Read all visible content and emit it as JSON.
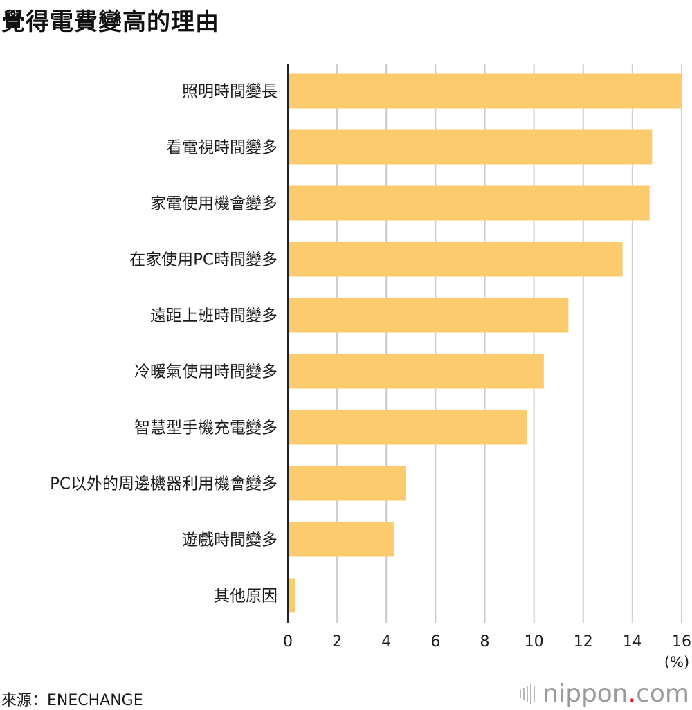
{
  "title": "覺得電費變高的理由",
  "source": "來源：ENECHANGE",
  "logo": {
    "name": "nippon",
    "dot": ".",
    "tld": "com",
    "dot_color": "#e60012"
  },
  "chart_data": {
    "type": "bar",
    "orientation": "horizontal",
    "title": "覺得電費變高的理由",
    "categories": [
      "照明時間變長",
      "看電視時間變多",
      "家電使用機會變多",
      "在家使用PC時間變多",
      "遠距上班時間變多",
      "冷暖氣使用時間變多",
      "智慧型手機充電變多",
      "PC以外的周邊機器利用機會變多",
      "遊戲時間變多",
      "其他原因"
    ],
    "values": [
      16.0,
      14.8,
      14.7,
      13.6,
      11.4,
      10.4,
      9.7,
      4.8,
      4.3,
      0.3
    ],
    "xlim": [
      0,
      16
    ],
    "xticks": [
      "0",
      "2",
      "4",
      "6",
      "8",
      "10",
      "12",
      "14",
      "16"
    ],
    "unit": "(%)",
    "grid": true,
    "bar_color": "#fccb6e",
    "grid_color": "#cccccc",
    "axis_color": "#222222"
  }
}
